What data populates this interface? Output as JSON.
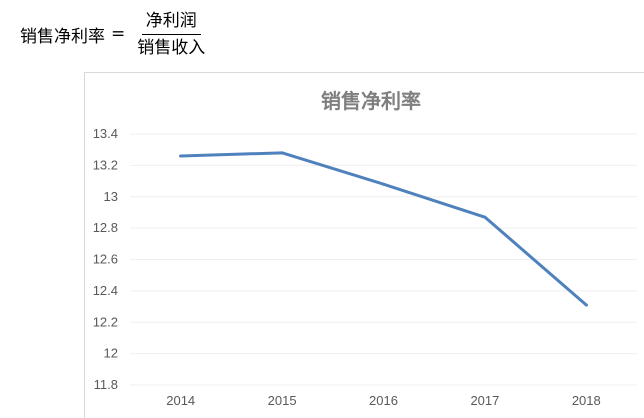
{
  "formula": {
    "lhs": "销售净利率",
    "eq": "=",
    "numerator": "净利润",
    "denominator": "销售收入"
  },
  "chart_data": {
    "type": "line",
    "title": "销售净利率",
    "xlabel": "",
    "ylabel": "",
    "categories": [
      "2014",
      "2015",
      "2016",
      "2017",
      "2018"
    ],
    "series": [
      {
        "values": [
          13.26,
          13.28,
          13.08,
          12.87,
          12.31
        ]
      }
    ],
    "ylim": [
      11.8,
      13.4
    ],
    "yticks": [
      "11.8",
      "12",
      "12.2",
      "12.4",
      "12.6",
      "12.8",
      "13",
      "13.2",
      "13.4"
    ],
    "grid": true,
    "legend": "none",
    "line_color": "#4f81bd",
    "grid_color": "#efefef",
    "title_color": "#7f7f7f",
    "tick_color": "#595959"
  }
}
